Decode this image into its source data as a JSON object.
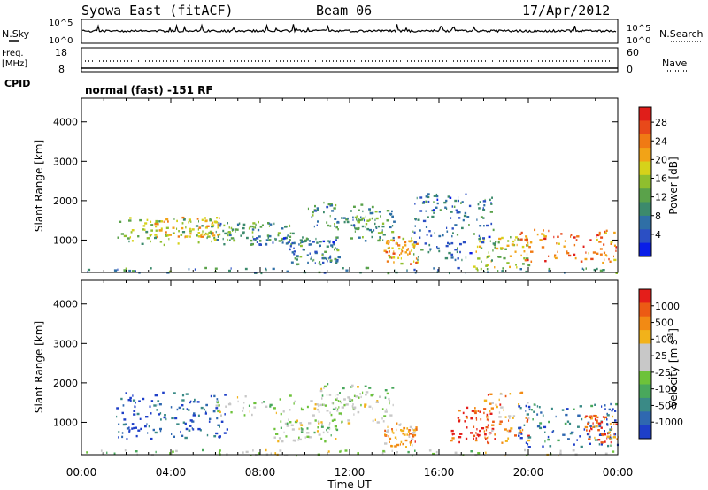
{
  "header": {
    "title": "Syowa East (fitACF)",
    "beam": "Beam 06",
    "date": "17/Apr/2012"
  },
  "status_panels": {
    "nsky_label": "N.Sky",
    "nsearch_label": "N.Search",
    "noise_ticks": [
      "10^5",
      "10^0"
    ],
    "freq_label_line1": "Freq.",
    "freq_label_line2": "[MHz]",
    "freq_ticks": [
      "18",
      "8"
    ],
    "nave_label": "Nave",
    "nave_ticks": [
      "60",
      "0"
    ],
    "cpid_label": "CPID",
    "cpid_text": "normal (fast) -151 RF"
  },
  "chart_data": [
    {
      "type": "heatmap",
      "name": "power",
      "ylabel": "Slant Range [km]",
      "xlabel": "",
      "x_range_hours": [
        0,
        24
      ],
      "ylim": [
        180,
        4600
      ],
      "y_ticks": [
        1000,
        2000,
        3000,
        4000
      ],
      "colorbar": {
        "label": "Power [dB]",
        "range": [
          0,
          30
        ],
        "ticks": [
          "28",
          "24",
          "20",
          "16",
          "12",
          "8",
          "4"
        ],
        "colors": [
          "#0a1ee8",
          "#2b4fc4",
          "#2f6fa6",
          "#3c8a6c",
          "#5aa24a",
          "#8fbf2e",
          "#d6d21a",
          "#f2a317",
          "#f07a14",
          "#e8491a",
          "#e01e1a"
        ]
      },
      "regions": [
        {
          "t0": 1.5,
          "t1": 7.8,
          "r0": 900,
          "r1": 1600,
          "level": 0.45
        },
        {
          "t0": 2.8,
          "t1": 6.2,
          "r0": 1100,
          "r1": 1600,
          "level": 0.65
        },
        {
          "t0": 6.0,
          "t1": 9.5,
          "r0": 1000,
          "r1": 1500,
          "level": 0.35
        },
        {
          "t0": 7.5,
          "t1": 11.5,
          "r0": 900,
          "r1": 1100,
          "level": 0.25
        },
        {
          "t0": 9.2,
          "t1": 11.5,
          "r0": 400,
          "r1": 900,
          "level": 0.3
        },
        {
          "t0": 10.0,
          "t1": 13.0,
          "r0": 1300,
          "r1": 2000,
          "level": 0.3
        },
        {
          "t0": 12.0,
          "t1": 14.0,
          "r0": 1000,
          "r1": 1800,
          "level": 0.35
        },
        {
          "t0": 13.5,
          "t1": 15.0,
          "r0": 400,
          "r1": 1100,
          "level": 0.7
        },
        {
          "t0": 17.5,
          "t1": 20.0,
          "r0": 300,
          "r1": 1100,
          "level": 0.55
        },
        {
          "t0": 19.5,
          "t1": 24.0,
          "r0": 400,
          "r1": 1300,
          "level": 0.75
        },
        {
          "t0": 14.8,
          "t1": 18.5,
          "r0": 500,
          "r1": 2200,
          "level": 0.25
        },
        {
          "t0": 0.2,
          "t1": 24.0,
          "r0": 180,
          "r1": 320,
          "level": 0.3
        }
      ]
    },
    {
      "type": "heatmap",
      "name": "velocity",
      "ylabel": "Slant Range [km]",
      "xlabel": "Time UT",
      "x_ticks": [
        "00:00",
        "04:00",
        "08:00",
        "12:00",
        "16:00",
        "20:00",
        "00:00"
      ],
      "x_range_hours": [
        0,
        24
      ],
      "ylim": [
        180,
        4600
      ],
      "y_ticks": [
        1000,
        2000,
        3000,
        4000
      ],
      "colorbar": {
        "label": "Velocity [m s^-1]",
        "label_main": "Velocity",
        "label_unit": "[m s",
        "label_exp": "-1",
        "label_close": "]",
        "ticks": [
          "1000",
          "500",
          "100",
          "25",
          "-25",
          "-100",
          "-500",
          "-1000"
        ],
        "colors": [
          "#1e3fc8",
          "#2f68b0",
          "#3a8a86",
          "#49a85c",
          "#6dc23a",
          "#c8c8c8",
          "#c8c8c8",
          "#f2b21a",
          "#f28a14",
          "#ec5a14",
          "#e41e1a"
        ]
      },
      "regions": [
        {
          "t0": 1.5,
          "t1": 6.5,
          "r0": 600,
          "r1": 1800,
          "level": 0.1
        },
        {
          "t0": 6.0,
          "t1": 12.5,
          "r0": 1200,
          "r1": 1700,
          "level": 0.5
        },
        {
          "t0": 8.5,
          "t1": 11.5,
          "r0": 500,
          "r1": 1100,
          "level": 0.5
        },
        {
          "t0": 10.5,
          "t1": 14.0,
          "r0": 1000,
          "r1": 2000,
          "level": 0.5
        },
        {
          "t0": 13.5,
          "t1": 15.0,
          "r0": 400,
          "r1": 1000,
          "level": 0.75
        },
        {
          "t0": 16.5,
          "t1": 18.5,
          "r0": 500,
          "r1": 1400,
          "level": 0.95
        },
        {
          "t0": 18.0,
          "t1": 20.0,
          "r0": 500,
          "r1": 1800,
          "level": 0.75
        },
        {
          "t0": 19.5,
          "t1": 24.0,
          "r0": 400,
          "r1": 1500,
          "level": 0.15
        },
        {
          "t0": 22.5,
          "t1": 24.0,
          "r0": 500,
          "r1": 1200,
          "level": 0.85
        },
        {
          "t0": 0.2,
          "t1": 24.0,
          "r0": 180,
          "r1": 320,
          "level": 0.5
        }
      ]
    }
  ]
}
